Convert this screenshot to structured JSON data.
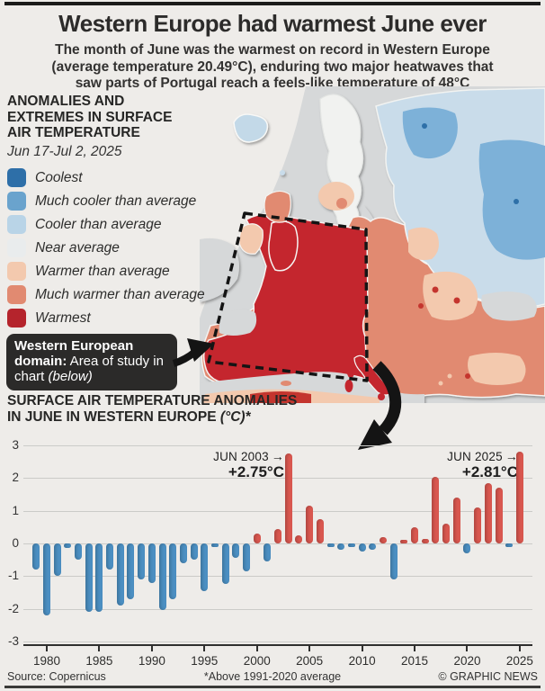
{
  "page": {
    "title": "Western Europe had warmest June ever",
    "subtitle_lines": [
      "The month of June was the warmest on record in Western Europe",
      "(average temperature 20.49°C), enduring two major heatwaves that",
      "saw parts of Portugal reach a feels-like temperature of 48°C"
    ]
  },
  "legend": {
    "heading_lines": [
      "ANOMALIES AND",
      "EXTREMES IN SURFACE",
      "AIR TEMPERATURE"
    ],
    "date_range": "Jun 17-Jul 2, 2025",
    "items": [
      {
        "label": "Coolest",
        "color": "#2e6fa8"
      },
      {
        "label": "Much cooler than average",
        "color": "#6aa3cd"
      },
      {
        "label": "Cooler than average",
        "color": "#b9d4e7"
      },
      {
        "label": "Near average",
        "color": "#e9eced"
      },
      {
        "label": "Warmer than average",
        "color": "#f3c9ae"
      },
      {
        "label": "Much warmer than average",
        "color": "#e18a71"
      },
      {
        "label": "Warmest",
        "color": "#b5242c"
      }
    ]
  },
  "map_callout": {
    "bold_text": "Western European domain:",
    "normal_text": " Area of study in chart ",
    "italic_text": "(below)"
  },
  "icons": {
    "arrow_right": "→"
  },
  "chart_data": {
    "type": "bar",
    "title_line1": "SURFACE AIR TEMPERATURE ANOMALIES",
    "title_line2": "IN JUNE IN WESTERN EUROPE ",
    "title_unit": "(°C)*",
    "start_year": 1979,
    "end_year": 2025,
    "values": [
      -0.8,
      -2.2,
      -1.0,
      -0.15,
      -0.5,
      -2.1,
      -2.1,
      -0.8,
      -1.9,
      -1.7,
      -1.1,
      -1.2,
      -2.05,
      -1.7,
      -0.6,
      -0.5,
      -1.45,
      -0.1,
      -1.25,
      -0.45,
      -0.85,
      0.3,
      -0.55,
      0.45,
      2.75,
      0.25,
      1.15,
      0.75,
      -0.05,
      -0.2,
      -0.1,
      -0.25,
      -0.2,
      0.2,
      -1.1,
      0.1,
      0.5,
      0.15,
      2.05,
      0.6,
      1.4,
      -0.3,
      1.1,
      1.85,
      1.7,
      -0.05,
      2.81
    ],
    "ylim": [
      -3,
      3
    ],
    "yticks": [
      3,
      2,
      1,
      0,
      -1,
      -2,
      -3
    ],
    "xticks": [
      1980,
      1985,
      1990,
      1995,
      2000,
      2005,
      2010,
      2015,
      2020,
      2025
    ],
    "grid": true,
    "legend_position": "none",
    "colors": {
      "positive": "#d9574f",
      "negative": "#4b8fc2"
    },
    "annotations": [
      {
        "year": 2003,
        "label": "JUN 2003",
        "value_label": "+2.75°C"
      },
      {
        "year": 2025,
        "label": "JUN 2025",
        "value_label": "+2.81°C"
      }
    ]
  },
  "footer": {
    "source": "Source: Copernicus",
    "note": "*Above 1991-2020 average",
    "credit": "© GRAPHIC NEWS"
  }
}
